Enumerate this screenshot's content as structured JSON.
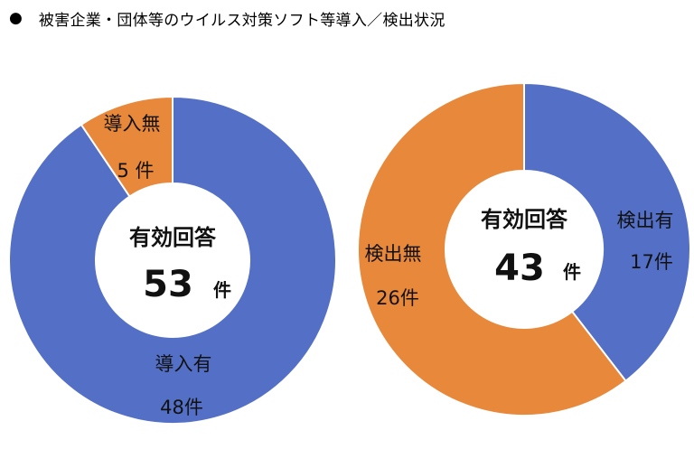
{
  "title": {
    "bullet": "●",
    "text": "被害企業・団体等のウイルス対策ソフト等導入／検出状況"
  },
  "colors": {
    "blue": "#5470C6",
    "orange": "#E8883A"
  },
  "chart_data": [
    {
      "type": "pie",
      "center_heading": "有効回答",
      "center_total": "53",
      "center_unit": "件",
      "slices": [
        {
          "label": "導入有",
          "value": 48,
          "value_text": "48件",
          "color": "#5470C6"
        },
        {
          "label": "導入無",
          "value": 5,
          "value_text": "5 件",
          "color": "#E8883A"
        }
      ]
    },
    {
      "type": "pie",
      "center_heading": "有効回答",
      "center_total": "43",
      "center_unit": "件",
      "slices": [
        {
          "label": "検出有",
          "value": 17,
          "value_text": "17件",
          "color": "#5470C6"
        },
        {
          "label": "検出無",
          "value": 26,
          "value_text": "26件",
          "color": "#E8883A"
        }
      ]
    }
  ]
}
